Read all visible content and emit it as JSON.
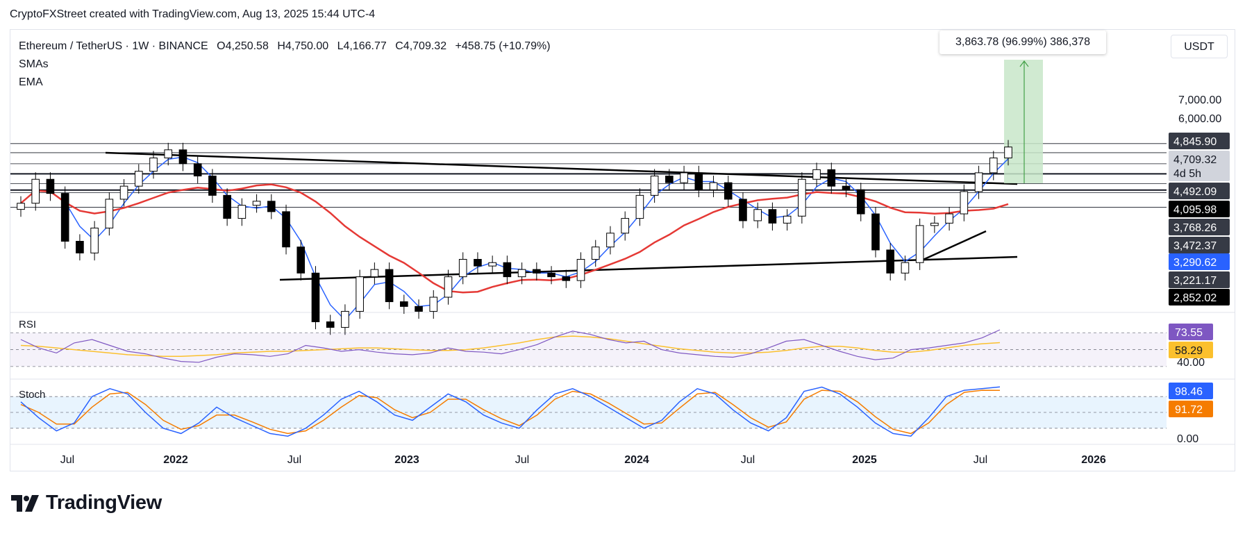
{
  "header": {
    "credit": "CryptoFXStreet created with TradingView.com, Aug 13, 2025 15:44 UTC-4"
  },
  "legend": {
    "symbol": "Ethereum / TetherUS · 1W · BINANCE",
    "open": "O4,250.58",
    "high": "H4,750.00",
    "low": "L4,166.77",
    "close": "C4,709.32",
    "change": "+458.75 (+10.79%)",
    "indicators": [
      "SMAs",
      "EMA"
    ]
  },
  "currency_button": "USDT",
  "measure_label": "3,863.78 (96.99%) 386,378",
  "brand": {
    "name": "TradingView"
  },
  "colors": {
    "candle_up": "#ffffff",
    "candle_down": "#000000",
    "sma_fast": "#2962ff",
    "sma_slow": "#e53935",
    "rsi_line": "#7e57c2",
    "rsi_ma": "#fbc02d",
    "stoch_k": "#2962ff",
    "stoch_d": "#f57c00",
    "measure_fill": "#c8e6c9",
    "measure_line": "#43a047"
  },
  "chart_data": [
    {
      "type": "candlestick",
      "symbol": "ETH/USDT",
      "timeframe": "1W",
      "price_axis_labels": [
        "7,000.00",
        "6,000.00"
      ],
      "price_tags": [
        {
          "value": "4,845.90",
          "style": "dark"
        },
        {
          "value": "4,709.32",
          "style": "light",
          "sub": "4d 5h"
        },
        {
          "value": "4,492.09",
          "style": "dark"
        },
        {
          "value": "4,095.98",
          "style": "black"
        },
        {
          "value": "3,768.26",
          "style": "dark"
        },
        {
          "value": "3,472.37",
          "style": "dark"
        },
        {
          "value": "3,290.62",
          "style": "blue"
        },
        {
          "value": "3,221.17",
          "style": "dark"
        },
        {
          "value": "2,852.02",
          "style": "black"
        }
      ],
      "horizontal_levels": [
        4845.9,
        4492.09,
        4095.98,
        3768.26,
        3472.37,
        3290.62,
        3221.17,
        2852.02
      ],
      "x_tick_labels": [
        "Jul",
        "2022",
        "Jul",
        "2023",
        "Jul",
        "2024",
        "Jul",
        "2025",
        "Jul",
        "2026"
      ],
      "closes": [
        2950,
        3600,
        3200,
        2150,
        1950,
        2400,
        3050,
        3400,
        3850,
        4300,
        4600,
        4100,
        3700,
        3150,
        2600,
        2900,
        3000,
        2750,
        2050,
        1650,
        1100,
        1050,
        1200,
        1600,
        1700,
        1300,
        1250,
        1200,
        1350,
        1600,
        1850,
        1750,
        1800,
        1600,
        1700,
        1650,
        1600,
        1550,
        1850,
        2050,
        2300,
        2600,
        3150,
        3700,
        3500,
        3800,
        3300,
        3500,
        3050,
        2550,
        2800,
        2500,
        2650,
        3600,
        3900,
        3400,
        3300,
        2700,
        2000,
        1650,
        1800,
        2450,
        2500,
        2700,
        3250,
        3800,
        4300,
        4709
      ],
      "sma_fast_label": "SMA",
      "sma_slow_label": "SMA",
      "ema_label": "EMA"
    },
    {
      "type": "line",
      "name": "RSI",
      "axis_labels": [
        "40.00"
      ],
      "current_tags": [
        {
          "value": "73.55",
          "color": "#7e57c2"
        },
        {
          "value": "58.29",
          "color": "#fbc02d"
        }
      ],
      "levels": [
        70,
        50,
        30
      ],
      "values": [
        62,
        52,
        46,
        58,
        62,
        55,
        48,
        45,
        40,
        36,
        35,
        41,
        45,
        44,
        42,
        45,
        55,
        52,
        48,
        50,
        47,
        45,
        44,
        46,
        52,
        48,
        47,
        45,
        50,
        56,
        65,
        72,
        68,
        62,
        58,
        60,
        50,
        46,
        44,
        42,
        41,
        45,
        52,
        60,
        62,
        55,
        48,
        42,
        38,
        40,
        50,
        52,
        55,
        58,
        64,
        73.55
      ],
      "ma_values": [
        55,
        54,
        52,
        50,
        48,
        46,
        44,
        43,
        42,
        42,
        43,
        44,
        46,
        47,
        48,
        48,
        49,
        50,
        51,
        52,
        52,
        51,
        50,
        49,
        49,
        50,
        52,
        55,
        58,
        62,
        65,
        66,
        65,
        63,
        60,
        57,
        54,
        51,
        49,
        47,
        46,
        46,
        47,
        49,
        52,
        54,
        54,
        52,
        49,
        47,
        47,
        49,
        52,
        55,
        57,
        58.29
      ]
    },
    {
      "type": "line",
      "name": "Stoch",
      "axis_labels": [
        "0.00"
      ],
      "current_tags": [
        {
          "value": "98.46",
          "color": "#2962ff"
        },
        {
          "value": "91.72",
          "color": "#f57c00"
        }
      ],
      "levels": [
        80,
        50,
        20
      ],
      "k_values": [
        70,
        40,
        15,
        30,
        80,
        95,
        85,
        50,
        20,
        10,
        30,
        60,
        40,
        25,
        10,
        5,
        20,
        45,
        75,
        90,
        70,
        45,
        35,
        60,
        85,
        70,
        45,
        30,
        20,
        55,
        85,
        95,
        80,
        60,
        40,
        20,
        35,
        70,
        95,
        85,
        55,
        30,
        15,
        40,
        90,
        98,
        85,
        60,
        30,
        10,
        5,
        40,
        80,
        92,
        95,
        98.46
      ],
      "d_values": [
        65,
        50,
        28,
        28,
        60,
        85,
        88,
        65,
        35,
        18,
        25,
        45,
        45,
        32,
        18,
        10,
        15,
        35,
        60,
        82,
        78,
        55,
        40,
        50,
        75,
        75,
        55,
        38,
        25,
        45,
        75,
        90,
        85,
        68,
        48,
        28,
        30,
        58,
        85,
        88,
        65,
        40,
        22,
        32,
        75,
        92,
        90,
        70,
        42,
        18,
        10,
        30,
        65,
        88,
        92,
        91.72
      ]
    }
  ]
}
